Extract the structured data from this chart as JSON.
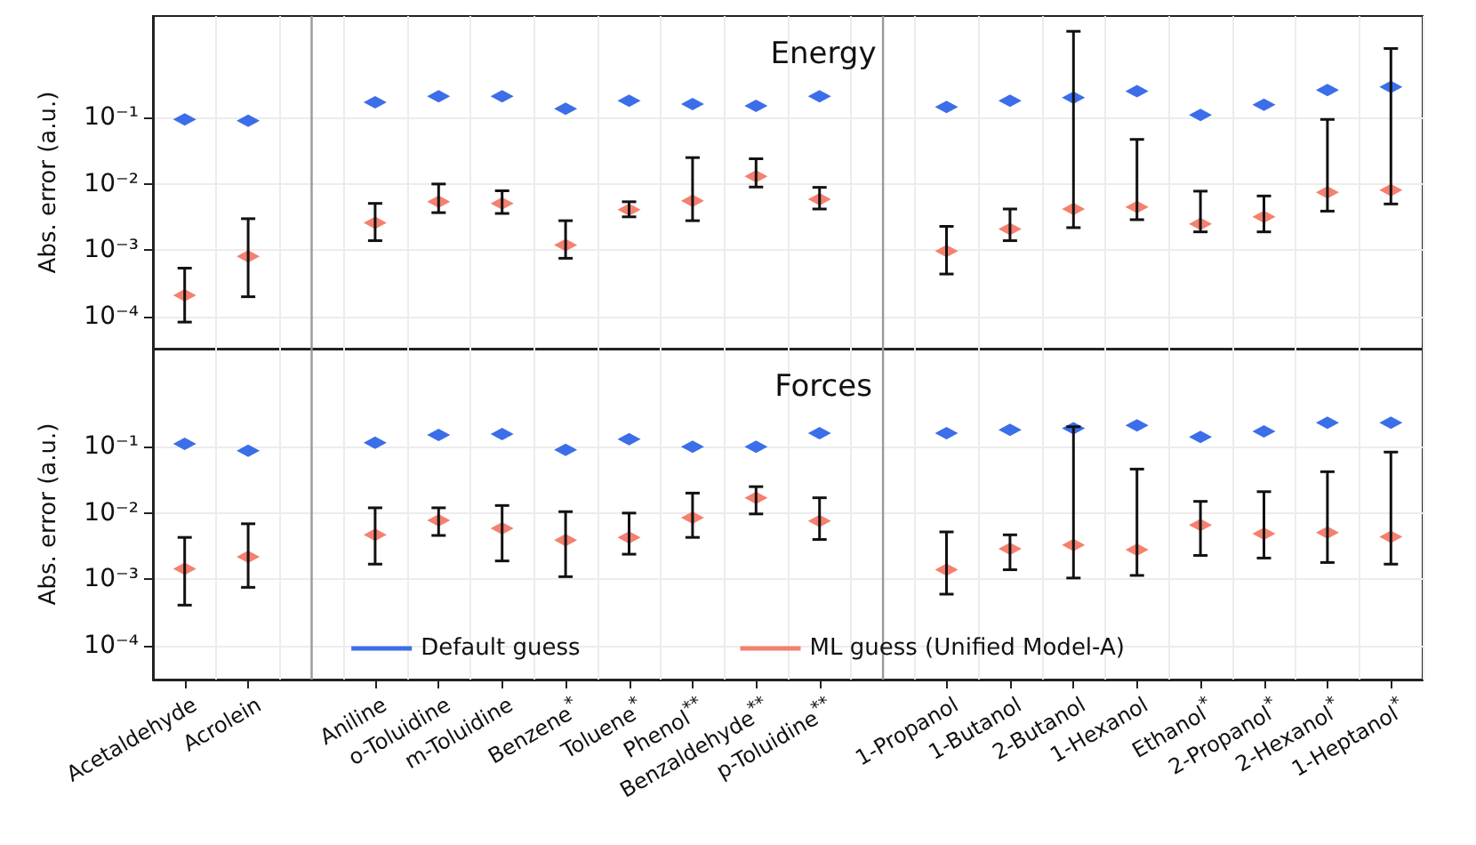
{
  "chart_data": [
    {
      "type": "scatter",
      "title": "Energy",
      "ylabel": "Abs. error (a.u.)",
      "log": "y",
      "grid": true,
      "marker": "diamond",
      "tick_labels": "y",
      "categories": [
        null,
        null,
        null,
        null,
        null,
        null,
        null,
        null,
        null,
        null,
        null,
        null,
        null,
        null,
        null,
        null,
        null,
        null,
        null,
        null
      ],
      "ylim": [
        3.3e-05,
        3.4
      ],
      "yticks": [
        {
          "value": 0.0001,
          "label": "10⁻⁴"
        },
        {
          "value": 0.001,
          "label": "10⁻³"
        },
        {
          "value": 0.01,
          "label": "10⁻²"
        },
        {
          "value": 0.1,
          "label": "10⁻¹"
        }
      ],
      "series": [
        {
          "color": "#3b6ee8",
          "values": [
            0.094,
            0.09,
            null,
            0.17,
            0.21,
            0.21,
            0.136,
            0.18,
            0.16,
            0.15,
            0.21,
            null,
            0.145,
            0.18,
            0.2,
            0.25,
            0.11,
            0.157,
            0.26,
            0.29
          ]
        },
        {
          "color": "#f4806f",
          "values": [
            0.00021,
            0.00081,
            null,
            0.0026,
            0.0054,
            0.0051,
            0.0012,
            0.0041,
            0.0056,
            0.013,
            0.0059,
            null,
            0.00098,
            0.0021,
            0.0042,
            0.0045,
            0.0025,
            0.0032,
            0.0075,
            0.0081
          ],
          "errors": [
            [
              8.3e-05,
              0.00054
            ],
            [
              0.0002,
              0.003
            ],
            null,
            [
              0.0014,
              0.0051
            ],
            [
              0.0037,
              0.01
            ],
            [
              0.0036,
              0.0079
            ],
            [
              0.00076,
              0.0028
            ],
            [
              0.0032,
              0.0054
            ],
            [
              0.0028,
              0.025
            ],
            [
              0.009,
              0.024
            ],
            [
              0.0042,
              0.0089
            ],
            null,
            [
              0.00044,
              0.0023
            ],
            [
              0.0014,
              0.0042
            ],
            [
              0.0022,
              2.0
            ],
            [
              0.0029,
              0.047
            ],
            [
              0.0019,
              0.0078
            ],
            [
              0.0019,
              0.0066
            ],
            [
              0.0039,
              0.094
            ],
            [
              0.005,
              1.1
            ]
          ]
        }
      ]
    },
    {
      "type": "scatter",
      "title": "Forces",
      "ylabel": "Abs. error (a.u.)",
      "log": "y",
      "grid": true,
      "marker": "diamond",
      "legend": "bottom",
      "categories": [
        "Acetaldehyde",
        "Acrolein",
        null,
        "Aniline",
        "o-Toluidine",
        "m-Toluidine",
        "Benzene$^{*}$",
        "Toluene$^{*}$",
        "Phenol$^{**}$",
        "Benzaldehyde$^{**}$",
        "p-Toluidine$^{**}$",
        null,
        "1-Propanol",
        "1-Butanol",
        "2-Butanol",
        "1-Hexanol",
        "Ethanol$^{*}$",
        "2-Propanol$^{*}$",
        "2-Hexanol$^{*}$",
        "1-Heptanol$^{*}$"
      ],
      "ylim": [
        3.1e-05,
        3.0
      ],
      "yticks": [
        {
          "value": 0.0001,
          "label": "10⁻⁴"
        },
        {
          "value": 0.001,
          "label": "10⁻³"
        },
        {
          "value": 0.01,
          "label": "10⁻²"
        },
        {
          "value": 0.1,
          "label": "10⁻¹"
        }
      ],
      "series": [
        {
          "name": "Default guess",
          "color": "#3b6ee8",
          "values": [
            0.11,
            0.087,
            null,
            0.115,
            0.15,
            0.155,
            0.09,
            0.13,
            0.1,
            0.1,
            0.16,
            null,
            0.16,
            0.18,
            0.19,
            0.21,
            0.14,
            0.17,
            0.23,
            0.23
          ]
        },
        {
          "name": "ML guess (Unified Model-A)",
          "color": "#f4806f",
          "values": [
            0.00145,
            0.0022,
            null,
            0.0047,
            0.0078,
            0.0059,
            0.0039,
            0.0043,
            0.0085,
            0.017,
            0.0076,
            null,
            0.0014,
            0.0029,
            0.0033,
            0.0028,
            0.0066,
            0.0049,
            0.0051,
            0.0044
          ],
          "errors": [
            [
              0.00041,
              0.0043
            ],
            [
              0.00076,
              0.0069
            ],
            null,
            [
              0.0017,
              0.012
            ],
            [
              0.0046,
              0.012
            ],
            [
              0.0019,
              0.013
            ],
            [
              0.0011,
              0.0105
            ],
            [
              0.0024,
              0.01
            ],
            [
              0.0043,
              0.02
            ],
            [
              0.0097,
              0.025
            ],
            [
              0.004,
              0.017
            ],
            null,
            [
              0.0006,
              0.0052
            ],
            [
              0.0014,
              0.0047
            ],
            [
              0.00105,
              0.2
            ],
            [
              0.00115,
              0.046
            ],
            [
              0.0023,
              0.015
            ],
            [
              0.0021,
              0.021
            ],
            [
              0.0018,
              0.042
            ],
            [
              0.0017,
              0.083
            ]
          ]
        }
      ]
    }
  ]
}
